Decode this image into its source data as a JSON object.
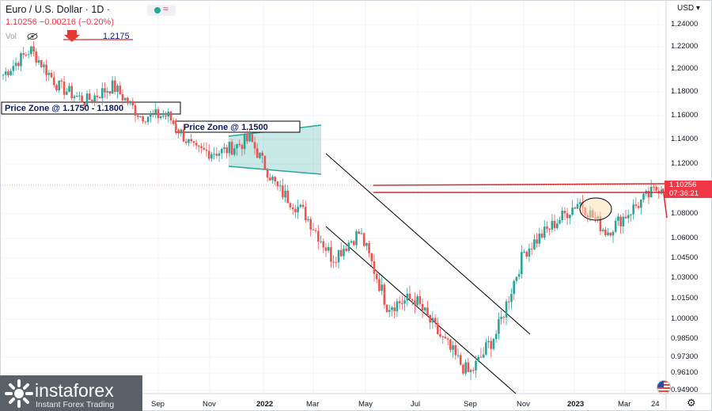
{
  "header": {
    "symbol": "Euro / U.S. Dollar · 1D ·",
    "price_line": "1.10256  −0.00216 (−0.20%)",
    "vol_label": "Vol",
    "currency": "USD"
  },
  "annotations": {
    "peak_level": "1.2175",
    "zone_upper": "Price Zone @ 1.1750 - 1.1800",
    "zone_lower": "Price Zone @ 1.1500"
  },
  "price_tag": {
    "price": "1.10256",
    "countdown": "07:36:21"
  },
  "brand": {
    "name": "instaforex",
    "tagline": "Instant Forex Trading"
  },
  "colors": {
    "up": "#26a69a",
    "down": "#ef5350",
    "level": "#d32f2f",
    "channel": "#000000",
    "triangle": "#26a69a"
  },
  "chart_data": {
    "type": "candlestick",
    "title": "Euro / U.S. Dollar · 1D",
    "ylabel": "USD",
    "ylim": [
      0.9455,
      1.2555
    ],
    "y_ticks": [
      "1.24000",
      "1.22000",
      "1.20000",
      "1.18000",
      "1.16000",
      "1.14000",
      "1.12000",
      "1.10000",
      "1.08000",
      "1.06000",
      "1.04500",
      "1.03000",
      "1.01500",
      "1.00000",
      "0.98500",
      "0.97300",
      "0.96100",
      "0.94900"
    ],
    "x_ticks": [
      "Sep",
      "Nov",
      "2022",
      "Mar",
      "May",
      "Jul",
      "Sep",
      "Nov",
      "2023",
      "Mar",
      "24"
    ],
    "x_ticks_bold": [
      "2022",
      "2023"
    ],
    "approx_closes": [
      {
        "date": "2021-05",
        "close": 1.195
      },
      {
        "date": "2021-06",
        "close": 1.2175
      },
      {
        "date": "2021-07",
        "close": 1.185
      },
      {
        "date": "2021-08",
        "close": 1.172
      },
      {
        "date": "2021-09",
        "close": 1.185
      },
      {
        "date": "2021-10",
        "close": 1.16
      },
      {
        "date": "2021-11",
        "close": 1.16
      },
      {
        "date": "2021-12",
        "close": 1.13
      },
      {
        "date": "2022-01",
        "close": 1.13
      },
      {
        "date": "2022-02",
        "close": 1.14
      },
      {
        "date": "2022-03",
        "close": 1.1
      },
      {
        "date": "2022-04",
        "close": 1.08
      },
      {
        "date": "2022-05",
        "close": 1.045
      },
      {
        "date": "2022-06",
        "close": 1.065
      },
      {
        "date": "2022-07",
        "close": 1.01
      },
      {
        "date": "2022-08",
        "close": 1.015
      },
      {
        "date": "2022-09",
        "close": 0.985
      },
      {
        "date": "2022-10",
        "close": 0.96
      },
      {
        "date": "2022-11",
        "close": 0.99
      },
      {
        "date": "2022-12",
        "close": 1.05
      },
      {
        "date": "2023-01",
        "close": 1.07
      },
      {
        "date": "2023-02",
        "close": 1.09
      },
      {
        "date": "2023-03",
        "close": 1.065
      },
      {
        "date": "2023-04",
        "close": 1.085
      },
      {
        "date": "2023-05",
        "close": 1.10256
      }
    ],
    "horizontal_levels": [
      1.2175,
      1.1025,
      1.0965
    ],
    "last_price": 1.10256
  }
}
